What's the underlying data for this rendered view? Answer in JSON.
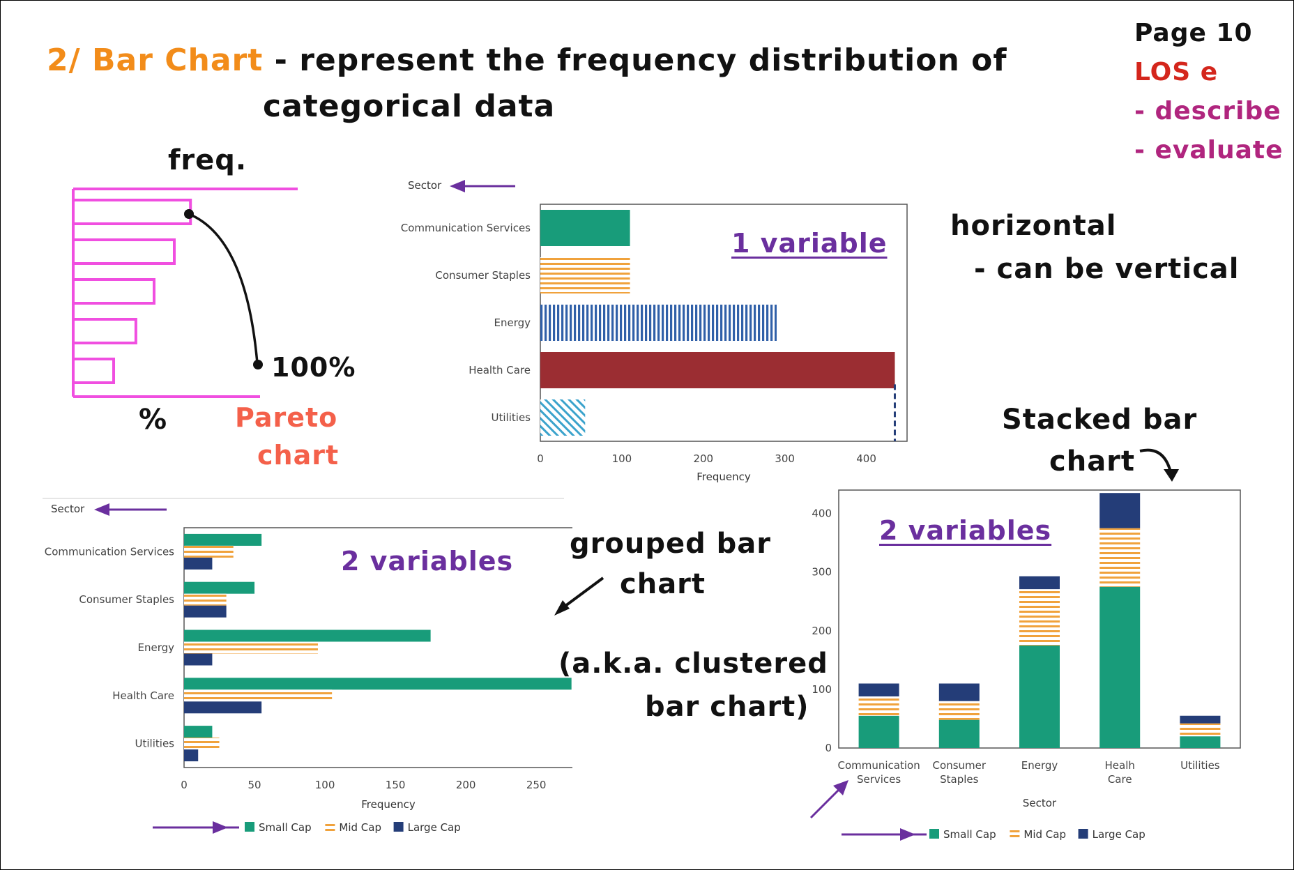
{
  "header": {
    "title_number": "2/ Bar Chart",
    "title_rest": " - represent the frequency distribution of",
    "title_line2": "categorical data",
    "page": "Page 10",
    "los": "LOS e",
    "describe": "- describe",
    "evaluate": "- evaluate"
  },
  "sketch": {
    "freq": "freq.",
    "hundred": "100%",
    "percent": "%",
    "pareto_1": "Pareto",
    "pareto_2": "chart",
    "bar_fractions": [
      0.58,
      0.5,
      0.4,
      0.31,
      0.2
    ],
    "color": "#f04fe0"
  },
  "notes": {
    "one_variable": "1 variable",
    "horizontal": "horizontal",
    "can_be_vertical": "- can be vertical",
    "grouped_1": "grouped bar",
    "grouped_2": "chart",
    "aka_1": "(a.k.a. clustered",
    "aka_2": "bar chart)",
    "stacked_1": "Stacked bar",
    "stacked_2": "chart",
    "two_variables_grouped": "2 variables",
    "two_variables_stacked": "2 variables"
  },
  "colors": {
    "green": "#189c7a",
    "orange_stripe": "#f0a23c",
    "navy": "#243d78",
    "blue_stripe": "#3060a8",
    "maroon": "#9b2d32",
    "cyan_stripe": "#3ba3cc",
    "arrow_purple": "#6a2f9e"
  },
  "chart_data": [
    {
      "type": "bar",
      "orientation": "horizontal",
      "categories": [
        "Communication Services",
        "Consumer Staples",
        "Energy",
        "Health Care",
        "Utilities"
      ],
      "values": [
        110,
        110,
        290,
        435,
        55
      ],
      "xlabel": "Frequency",
      "ylabel": "Sector",
      "xticks": [
        0,
        100,
        200,
        300,
        400
      ],
      "xlim": [
        0,
        450
      ]
    },
    {
      "type": "bar",
      "orientation": "horizontal",
      "grouped": true,
      "categories": [
        "Communication Services",
        "Consumer Staples",
        "Energy",
        "Health Care",
        "Utilities"
      ],
      "series": [
        {
          "name": "Small Cap",
          "values": [
            55,
            50,
            175,
            275,
            20
          ]
        },
        {
          "name": "Mid Cap",
          "values": [
            35,
            30,
            95,
            105,
            25
          ]
        },
        {
          "name": "Large Cap",
          "values": [
            20,
            30,
            20,
            55,
            10
          ]
        }
      ],
      "xlabel": "Frequency",
      "ylabel": "Sector",
      "xticks": [
        0,
        50,
        100,
        150,
        200,
        250
      ],
      "xlim": [
        0,
        290
      ],
      "legend": "bottom"
    },
    {
      "type": "bar",
      "orientation": "vertical",
      "stacked": true,
      "categories": [
        "Communication Services",
        "Consumer Staples",
        "Energy",
        "Healh Care",
        "Utilities"
      ],
      "series": [
        {
          "name": "Small Cap",
          "values": [
            55,
            48,
            175,
            275,
            20
          ]
        },
        {
          "name": "Mid Cap",
          "values": [
            33,
            32,
            96,
            100,
            22
          ]
        },
        {
          "name": "Large Cap",
          "values": [
            22,
            30,
            22,
            60,
            13
          ]
        }
      ],
      "xlabel": "Sector",
      "yticks": [
        0,
        100,
        200,
        300,
        400
      ],
      "ylim": [
        0,
        440
      ],
      "legend": "bottom"
    }
  ]
}
